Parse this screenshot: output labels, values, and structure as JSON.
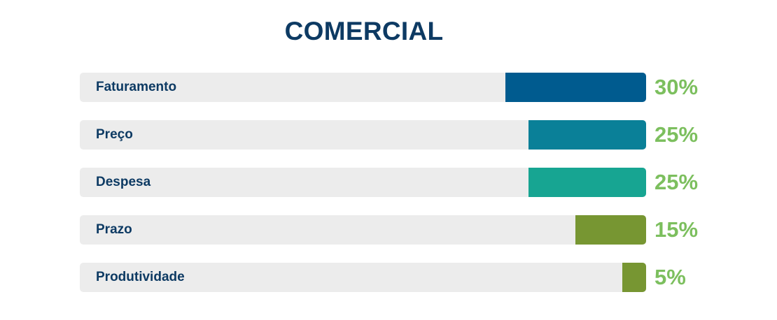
{
  "chart_data": {
    "type": "bar",
    "orientation": "horizontal",
    "title": "COMERCIAL",
    "categories": [
      "Faturamento",
      "Preço",
      "Despesa",
      "Prazo",
      "Produtividade"
    ],
    "values": [
      30,
      25,
      25,
      15,
      5
    ],
    "value_labels": [
      "30%",
      "25%",
      "25%",
      "15%",
      "5%"
    ],
    "unit": "%",
    "xlim": [
      0,
      100
    ],
    "grid": false,
    "legend": "none",
    "colors": [
      "#005b8f",
      "#0a8098",
      "#17a592",
      "#779632",
      "#779632"
    ],
    "track_color": "#ececec",
    "title_color": "#0d3a63",
    "label_color": "#0d3a63",
    "value_label_color": "#7cbf5e"
  }
}
